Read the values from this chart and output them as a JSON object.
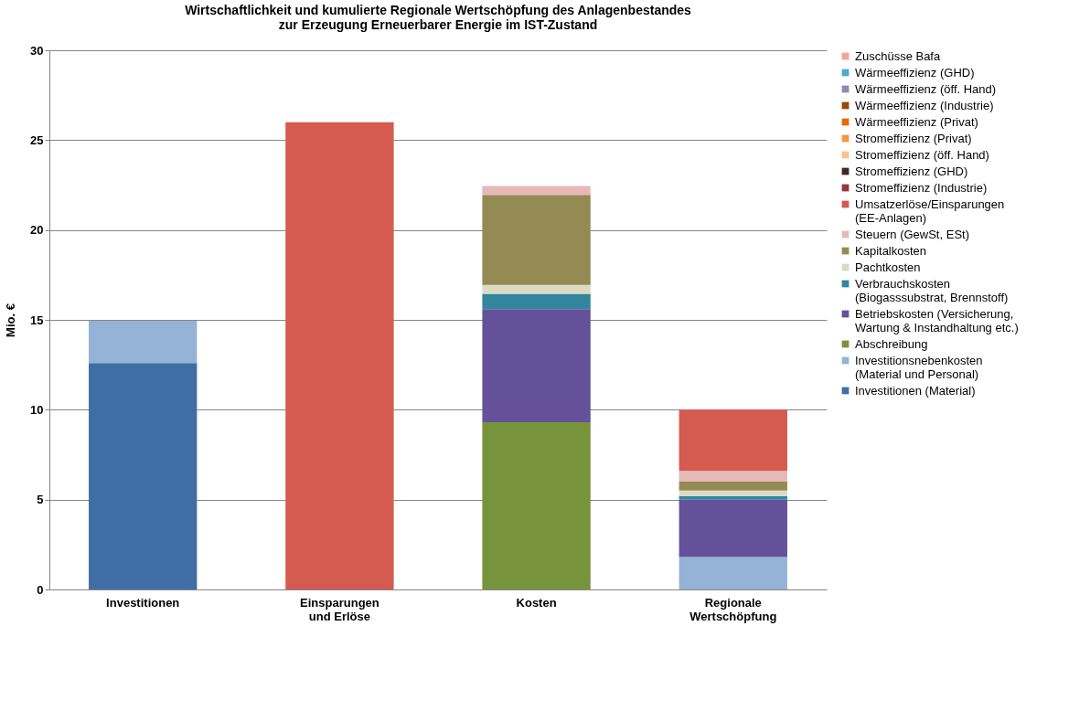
{
  "chart_data": {
    "type": "bar",
    "stacked": true,
    "title": "Wirtschaftlichkeit und kumulierte Regionale Wertschöpfung des Anlagenbestandes zur Erzeugung Erneuerbarer Energie im IST-Zustand",
    "ylabel": "Mio. €",
    "categories": [
      "Investitionen",
      "Einsparungen und Erlöse",
      "Kosten",
      "Regionale Wertschöpfung"
    ],
    "ylim": [
      0,
      30
    ],
    "yticks": [
      0,
      5,
      10,
      15,
      20,
      25,
      30
    ],
    "grid": "y",
    "legend": "right",
    "series": [
      {
        "name": "Investitionen (Material)",
        "color": "#3f6ea5",
        "values": [
          12.6,
          null,
          null,
          null
        ]
      },
      {
        "name": "Investitionsnebenkosten (Material und Personal)",
        "color": "#95b3d7",
        "values": [
          2.35,
          null,
          null,
          1.8
        ]
      },
      {
        "name": "Abschreibung",
        "color": "#77933c",
        "values": [
          null,
          null,
          9.3,
          null
        ]
      },
      {
        "name": "Betriebskosten (Versicherung, Wartung & Instandhaltung etc.)",
        "color": "#64519a",
        "values": [
          null,
          null,
          6.3,
          3.2
        ]
      },
      {
        "name": "Verbrauchskosten (Biogasssubstrat, Brennstoff)",
        "color": "#31859c",
        "values": [
          null,
          null,
          0.85,
          0.2
        ]
      },
      {
        "name": "Pachtkosten",
        "color": "#ddd9c3",
        "values": [
          null,
          null,
          0.5,
          0.3
        ]
      },
      {
        "name": "Kapitalkosten",
        "color": "#948a54",
        "values": [
          null,
          null,
          5.0,
          0.5
        ]
      },
      {
        "name": "Steuern (GewSt, ESt)",
        "color": "#e6b9b8",
        "values": [
          null,
          null,
          0.5,
          0.6
        ]
      },
      {
        "name": "Umsatzerlöse/Einsparungen (EE-Anlagen)",
        "color": "#d55a4f",
        "values": [
          null,
          26.0,
          null,
          3.4
        ]
      },
      {
        "name": "Stromeffizienz (Industrie)",
        "color": "#953735",
        "values": [
          null,
          null,
          null,
          null
        ]
      },
      {
        "name": "Stromeffizienz (GHD)",
        "color": "#3b2a2a",
        "values": [
          null,
          null,
          null,
          null
        ]
      },
      {
        "name": "Stromeffizienz (öff. Hand)",
        "color": "#fac090",
        "values": [
          null,
          null,
          null,
          null
        ]
      },
      {
        "name": "Stromeffizienz (Privat)",
        "color": "#f79646",
        "values": [
          null,
          null,
          null,
          null
        ]
      },
      {
        "name": "Wärmeeffizienz (Privat)",
        "color": "#e46c0a",
        "values": [
          null,
          null,
          null,
          null
        ]
      },
      {
        "name": "Wärmeeffizienz (Industrie)",
        "color": "#984807",
        "values": [
          null,
          null,
          null,
          null
        ]
      },
      {
        "name": "Wärmeeffizienz (öff. Hand)",
        "color": "#8e8ab4",
        "values": [
          null,
          null,
          null,
          null
        ]
      },
      {
        "name": "Wärmeeffizienz (GHD)",
        "color": "#4bacc6",
        "values": [
          null,
          null,
          null,
          null
        ]
      },
      {
        "name": "Zuschüsse Bafa",
        "color": "#f2a58e",
        "values": [
          null,
          null,
          null,
          null
        ]
      }
    ]
  }
}
